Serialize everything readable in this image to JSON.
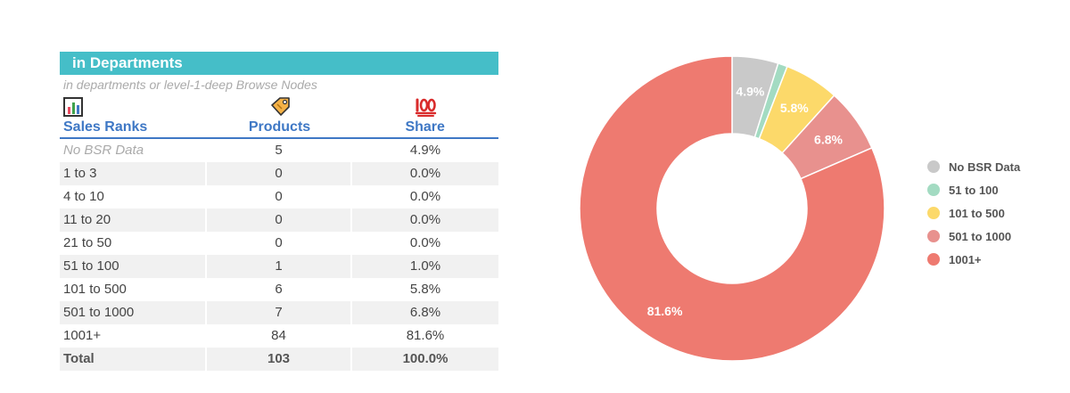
{
  "table": {
    "title": "in Departments",
    "subtitle": "in departments or level-1-deep Browse Nodes",
    "headers": {
      "ranks": "Sales Ranks",
      "products": "Products",
      "share": "Share"
    },
    "rows": [
      {
        "rank": "No BSR Data",
        "products": "5",
        "share": "4.9%"
      },
      {
        "rank": "1 to 3",
        "products": "0",
        "share": "0.0%"
      },
      {
        "rank": "4 to 10",
        "products": "0",
        "share": "0.0%"
      },
      {
        "rank": "11 to 20",
        "products": "0",
        "share": "0.0%"
      },
      {
        "rank": "21 to 50",
        "products": "0",
        "share": "0.0%"
      },
      {
        "rank": "51 to 100",
        "products": "1",
        "share": "1.0%"
      },
      {
        "rank": "101 to 500",
        "products": "6",
        "share": "5.8%"
      },
      {
        "rank": "501 to 1000",
        "products": "7",
        "share": "6.8%"
      },
      {
        "rank": "1001+",
        "products": "84",
        "share": "81.6%"
      }
    ],
    "total": {
      "rank": "Total",
      "products": "103",
      "share": "100.0%"
    }
  },
  "chart_data": {
    "type": "pie",
    "subtype": "donut",
    "legend_position": "right",
    "slices": [
      {
        "label": "No BSR Data",
        "value": 4.9,
        "color": "#C9C9C9",
        "data_label": "4.9%"
      },
      {
        "label": "51 to 100",
        "value": 1.0,
        "color": "#A3DBC2",
        "data_label": ""
      },
      {
        "label": "101 to 500",
        "value": 5.8,
        "color": "#FCD96A",
        "data_label": "5.8%"
      },
      {
        "label": "501 to 1000",
        "value": 6.8,
        "color": "#E8918E",
        "data_label": "6.8%"
      },
      {
        "label": "1001+",
        "value": 81.6,
        "color": "#EE7A70",
        "data_label": "81.6%"
      }
    ]
  }
}
